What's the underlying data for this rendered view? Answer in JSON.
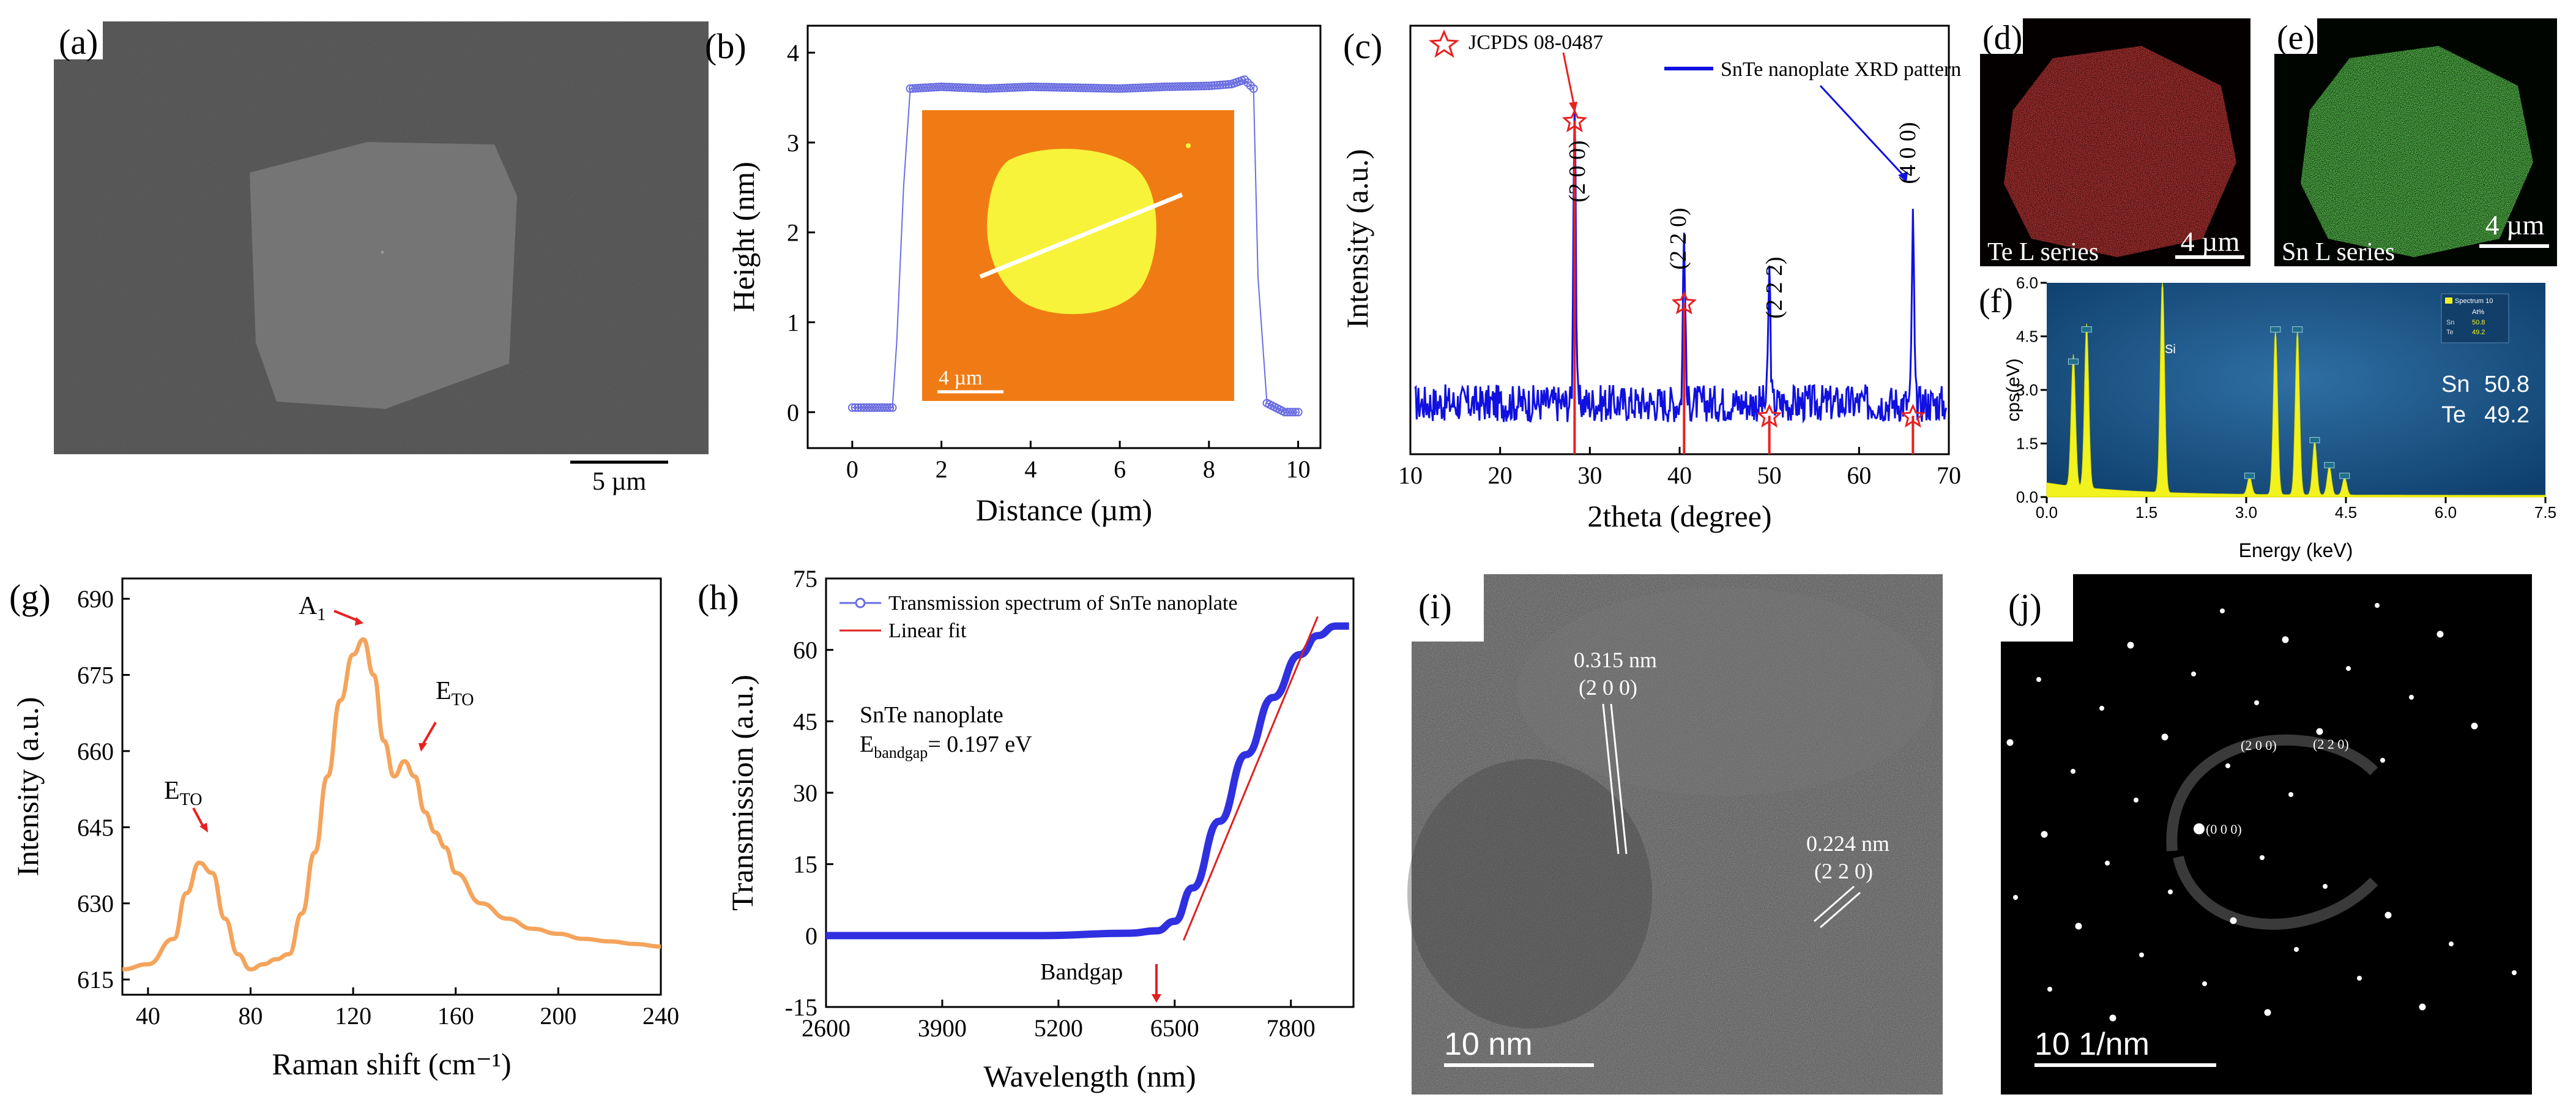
{
  "panels": {
    "a": {
      "label": "(a)",
      "scalebar": "5 µm"
    },
    "b": {
      "label": "(b)",
      "inset_scalebar": "4 µm"
    },
    "c": {
      "label": "(c)",
      "peak_labels": [
        "(2 0 0)",
        "(2 2 0)",
        "(2 2 2)",
        "(4 0 0)"
      ]
    },
    "d": {
      "label": "(d)",
      "caption": "Te L series",
      "scalebar": "4 µm",
      "color": "#e0242c"
    },
    "e": {
      "label": "(e)",
      "caption": "Sn L series",
      "scalebar": "4 µm",
      "color": "#3acb2a"
    },
    "f": {
      "label": "(f)",
      "element_tags": [
        "Si"
      ],
      "composition": [
        {
          "el": "Sn",
          "val": "50.8"
        },
        {
          "el": "Te",
          "val": "49.2"
        }
      ],
      "legend_title": "Spectrum 10",
      "legend_col": "At%"
    },
    "g": {
      "label": "(g)"
    },
    "h": {
      "label": "(h)"
    },
    "i": {
      "label": "(i)",
      "d1": "0.315 nm",
      "h1": "(2 0 0)",
      "d2": "0.224 nm",
      "h2": "(2 2 0)",
      "scalebar": "10 nm"
    },
    "j": {
      "label": "(j)",
      "spots": [
        "(2 0 0)",
        "(2 2 0)",
        "(0 0 0)"
      ],
      "scalebar": "10 1/nm"
    }
  },
  "chart_data": [
    {
      "id": "b",
      "type": "line",
      "title": "",
      "xlabel": "Distance (µm)",
      "ylabel": "Height (nm)",
      "xlim": [
        -1,
        10.5
      ],
      "ylim": [
        -0.4,
        4.3
      ],
      "xticks": [
        0,
        2,
        4,
        6,
        8,
        10
      ],
      "yticks": [
        0,
        1,
        2,
        3,
        4
      ],
      "color": "#6a6de0",
      "x": [
        0,
        0.2,
        0.5,
        0.9,
        1.0,
        1.15,
        1.3,
        2,
        3,
        4,
        5,
        6,
        7,
        8,
        8.5,
        8.8,
        9.0,
        9.1,
        9.3,
        9.7,
        10.0
      ],
      "y": [
        0.05,
        0.05,
        0.05,
        0.05,
        0.8,
        2.5,
        3.6,
        3.62,
        3.6,
        3.62,
        3.61,
        3.6,
        3.62,
        3.63,
        3.65,
        3.7,
        3.6,
        1.5,
        0.1,
        0,
        0
      ]
    },
    {
      "id": "c",
      "type": "line",
      "title": "",
      "xlabel": "2theta (degree)",
      "ylabel": "Intensity (a.u.)",
      "xlim": [
        10,
        70
      ],
      "xticks": [
        10,
        20,
        30,
        40,
        50,
        60,
        70
      ],
      "legend": [
        "JCPDS 08-0487",
        "SnTe nanoplate XRD pattern"
      ],
      "series": [
        {
          "name": "SnTe nanoplate XRD pattern",
          "color": "#1010e0",
          "peaks": [
            {
              "x": 28.3,
              "y": 100
            },
            {
              "x": 40.5,
              "y": 55
            },
            {
              "x": 50.0,
              "y": 42
            },
            {
              "x": 66.0,
              "y": 58
            }
          ],
          "baseline": 10,
          "noise": 6
        },
        {
          "name": "JCPDS 08-0487",
          "color": "#e82020",
          "x": [
            28.3,
            40.5,
            50.0,
            66.0
          ],
          "values": [
            100,
            42,
            6,
            6
          ]
        }
      ]
    },
    {
      "id": "f",
      "type": "area",
      "title": "",
      "xlabel": "Energy (keV)",
      "ylabel": "cps(eV)",
      "xlim": [
        0,
        7.5
      ],
      "ylim": [
        0,
        6.0
      ],
      "xticks": [
        0.0,
        1.5,
        3.0,
        4.5,
        6.0,
        7.5
      ],
      "yticks": [
        0.0,
        1.5,
        3.0,
        4.5,
        6.0
      ],
      "color": "#f2f21e",
      "peaks": [
        {
          "x": 0.4,
          "y": 3.7
        },
        {
          "x": 0.6,
          "y": 4.6
        },
        {
          "x": 1.74,
          "y": 6.0
        },
        {
          "x": 3.05,
          "y": 0.5
        },
        {
          "x": 3.44,
          "y": 4.6
        },
        {
          "x": 3.77,
          "y": 4.6
        },
        {
          "x": 4.03,
          "y": 1.5
        },
        {
          "x": 4.25,
          "y": 0.8
        },
        {
          "x": 4.48,
          "y": 0.5
        }
      ]
    },
    {
      "id": "g",
      "type": "line",
      "title": "",
      "xlabel": "Raman shift (cm⁻¹)",
      "ylabel": "Intensity (a.u.)",
      "xlim": [
        30,
        240
      ],
      "ylim": [
        612,
        694
      ],
      "xticks": [
        40,
        80,
        120,
        160,
        200,
        240
      ],
      "yticks": [
        615,
        630,
        645,
        660,
        675,
        690
      ],
      "color": "#f4a45c",
      "x": [
        30,
        40,
        50,
        55,
        60,
        65,
        70,
        75,
        80,
        85,
        90,
        95,
        100,
        105,
        110,
        115,
        120,
        124,
        128,
        132,
        136,
        140,
        144,
        148,
        152,
        156,
        160,
        170,
        180,
        190,
        200,
        210,
        220,
        230,
        240
      ],
      "y": [
        617,
        618,
        623,
        632,
        638,
        636,
        627,
        620,
        617,
        618,
        619,
        620,
        628,
        640,
        655,
        670,
        679,
        682,
        675,
        662,
        655,
        658,
        655,
        648,
        644,
        641,
        636,
        630,
        627,
        625,
        624,
        623,
        622.5,
        622,
        621.5
      ],
      "annotations": [
        "E",
        "A",
        "E"
      ]
    },
    {
      "id": "h",
      "type": "line",
      "title": "",
      "xlabel": "Wavelength (nm)",
      "ylabel": "Transmission (a.u.)",
      "xlim": [
        2600,
        8500
      ],
      "ylim": [
        -15,
        75
      ],
      "xticks": [
        2600,
        3900,
        5200,
        6500,
        7800
      ],
      "yticks": [
        -15,
        0,
        15,
        30,
        45,
        60,
        75
      ],
      "legend": [
        "Transmission spectrum of SnTe nanoplate",
        "Linear fit"
      ],
      "annotation_title": "SnTe nanoplate",
      "annotation_bandgap": "= 0.197 eV",
      "bandgap_label": "Bandgap",
      "series": [
        {
          "name": "Transmission spectrum of SnTe nanoplate",
          "color": "#3030e0",
          "x": [
            2600,
            3000,
            4000,
            5000,
            6000,
            6300,
            6500,
            6700,
            7000,
            7300,
            7600,
            7900,
            8100,
            8300,
            8450
          ],
          "y": [
            0,
            0,
            0,
            0,
            0.5,
            1,
            3,
            10,
            24,
            38,
            50,
            59,
            63,
            65,
            65
          ]
        },
        {
          "name": "Linear fit",
          "color": "#e02020",
          "x": [
            6600,
            8100
          ],
          "y": [
            -1,
            67
          ]
        }
      ]
    }
  ]
}
